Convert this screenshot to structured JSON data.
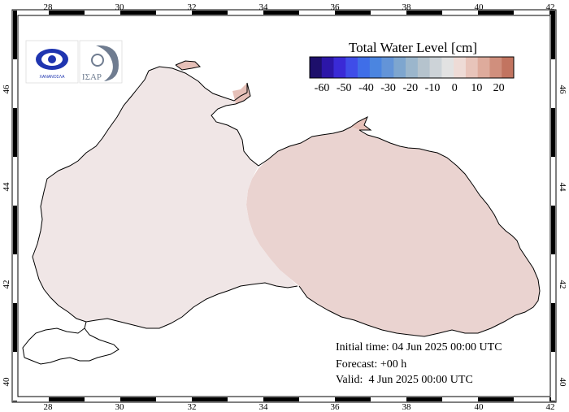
{
  "map": {
    "variable_title": "Total Water Level [cm]",
    "lon_ticks": [
      "28",
      "30",
      "32",
      "34",
      "36",
      "38",
      "40",
      "42"
    ],
    "lat_ticks": [
      "40",
      "42",
      "44",
      "46"
    ],
    "colorbar": {
      "tick_labels": [
        "-60",
        "-50",
        "-40",
        "-30",
        "-20",
        "-10",
        "0",
        "10",
        "20"
      ],
      "colors": [
        "#1d0f6b",
        "#2c16a8",
        "#3a2ad6",
        "#3f4de8",
        "#3f6ee8",
        "#4b85e0",
        "#6394d8",
        "#7ea6cf",
        "#9bb6cc",
        "#b5c3cd",
        "#cdd3d8",
        "#e2e2e2",
        "#eedbd6",
        "#e8c4ba",
        "#deab9c",
        "#d08f7d",
        "#c27460"
      ]
    },
    "sea_colors": {
      "west": "#f0e6e6",
      "east": "#ead3d0",
      "azov": "#e6c0b8"
    },
    "logos": {
      "left_logo_text": "ΧΑΝΑΝΟΣΛΑ",
      "right_logo_text": "ΙΣΑΡ"
    },
    "info": {
      "initial_time": "Initial time: 04 Jun 2025 00:00 UTC",
      "forecast": "Forecast: +00 h",
      "valid": "Valid:  4 Jun 2025 00:00 UTC"
    }
  }
}
